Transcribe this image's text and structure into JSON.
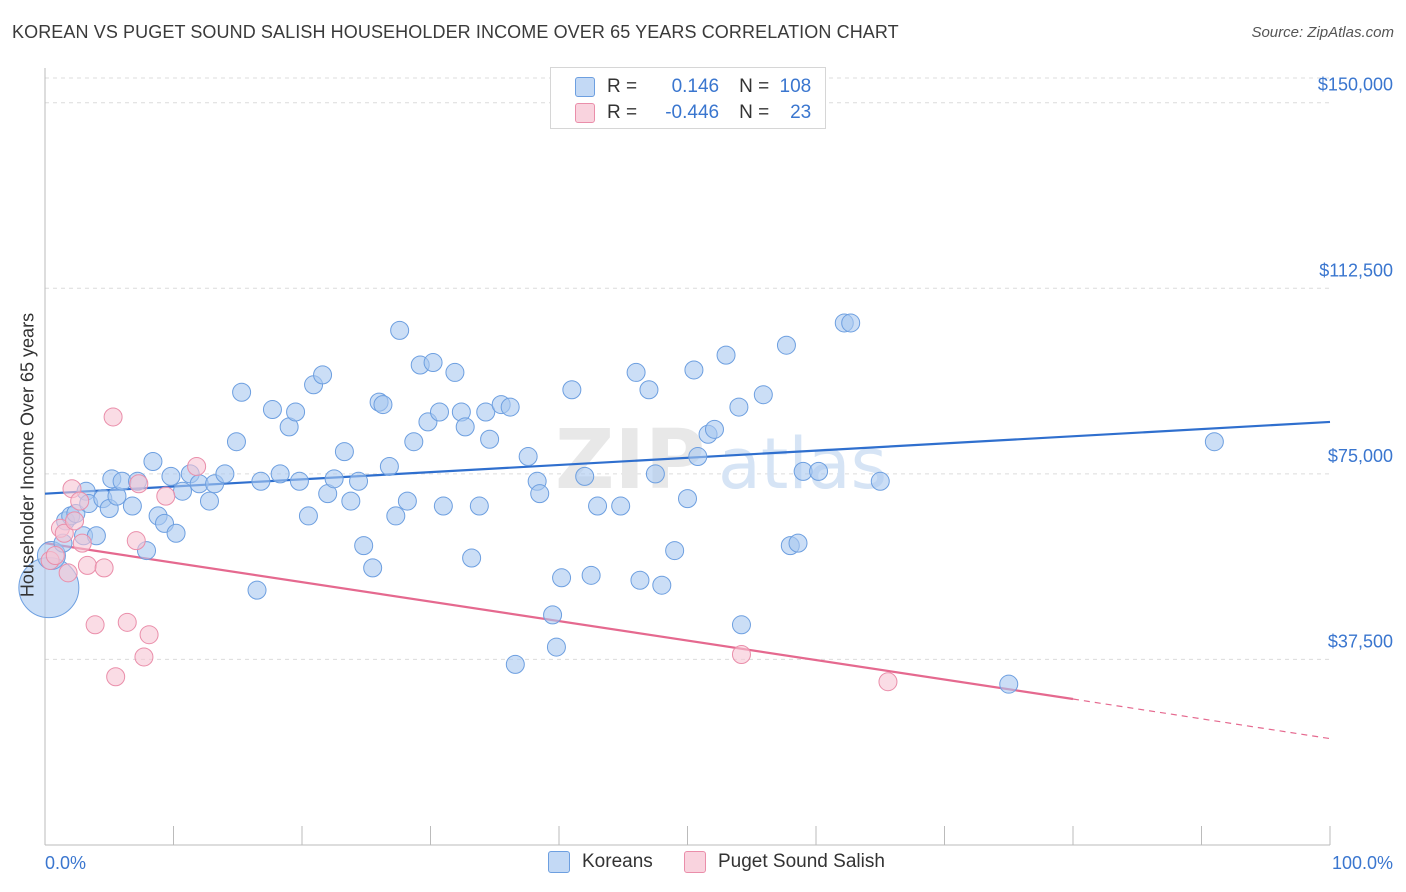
{
  "title": "KOREAN VS PUGET SOUND SALISH HOUSEHOLDER INCOME OVER 65 YEARS CORRELATION CHART",
  "source": "Source: ZipAtlas.com",
  "watermark": {
    "zip": "ZIP",
    "atlas": "atlas"
  },
  "legend": {
    "rows": [
      {
        "r_label": "R =",
        "r_value": "0.146",
        "n_label": "N =",
        "n_value": "108"
      },
      {
        "r_label": "R =",
        "r_value": "-0.446",
        "n_label": "N =",
        "n_value": "23"
      }
    ]
  },
  "colors": {
    "korean_fill": "#a9c8f0",
    "korean_stroke": "#6d9fe0",
    "korean_line": "#2f6fce",
    "salish_fill": "#f7c4d3",
    "salish_stroke": "#ea8eaa",
    "salish_line": "#e5698f",
    "axis_label": "#3a76cf",
    "grid": "#dcdcdc"
  },
  "chart_data": {
    "type": "scatter",
    "xlabel": "",
    "ylabel": "Householder Income Over 65 years",
    "xlim": [
      0,
      100
    ],
    "ylim": [
      0,
      155000
    ],
    "x_tick_labels": [
      "0.0%",
      "100.0%"
    ],
    "y_ticks": [
      37500,
      75000,
      112500,
      150000
    ],
    "y_tick_labels": [
      "$37,500",
      "$75,000",
      "$112,500",
      "$150,000"
    ],
    "grid": "horizontal dashed",
    "series": [
      {
        "name": "Koreans",
        "color": "#a9c8f0",
        "trend": {
          "x": [
            0,
            100
          ],
          "y": [
            71000,
            85500
          ]
        },
        "points": [
          [
            0.3,
            52000,
            30
          ],
          [
            0.5,
            58500,
            14
          ],
          [
            1.4,
            61000,
            9
          ],
          [
            1.6,
            65500,
            9
          ],
          [
            2.0,
            66500,
            9
          ],
          [
            2.4,
            67000,
            9
          ],
          [
            3.0,
            62500,
            9
          ],
          [
            3.2,
            71500,
            9
          ],
          [
            3.4,
            69000,
            9
          ],
          [
            4.0,
            62500,
            9
          ],
          [
            4.5,
            70000,
            9
          ],
          [
            5.0,
            68000,
            9
          ],
          [
            5.2,
            74000,
            9
          ],
          [
            5.6,
            70500,
            9
          ],
          [
            6.0,
            73500,
            9
          ],
          [
            6.8,
            68500,
            9
          ],
          [
            7.2,
            73500,
            9
          ],
          [
            7.9,
            59500,
            9
          ],
          [
            8.4,
            77500,
            9
          ],
          [
            8.8,
            66500,
            9
          ],
          [
            9.3,
            65000,
            9
          ],
          [
            9.8,
            74500,
            9
          ],
          [
            10.2,
            63000,
            9
          ],
          [
            10.7,
            71500,
            9
          ],
          [
            11.3,
            75000,
            9
          ],
          [
            12.0,
            73000,
            9
          ],
          [
            12.8,
            69500,
            9
          ],
          [
            13.2,
            73000,
            9
          ],
          [
            14.0,
            75000,
            9
          ],
          [
            14.9,
            81500,
            9
          ],
          [
            15.3,
            91500,
            9
          ],
          [
            16.5,
            51500,
            9
          ],
          [
            16.8,
            73500,
            9
          ],
          [
            17.7,
            88000,
            9
          ],
          [
            18.3,
            75000,
            9
          ],
          [
            19.0,
            84500,
            9
          ],
          [
            19.5,
            87500,
            9
          ],
          [
            19.8,
            73500,
            9
          ],
          [
            20.5,
            66500,
            9
          ],
          [
            20.9,
            93000,
            9
          ],
          [
            21.6,
            95000,
            9
          ],
          [
            22.0,
            71000,
            9
          ],
          [
            22.5,
            74000,
            9
          ],
          [
            23.3,
            79500,
            9
          ],
          [
            23.8,
            69500,
            9
          ],
          [
            24.4,
            73500,
            9
          ],
          [
            24.8,
            60500,
            9
          ],
          [
            25.5,
            56000,
            9
          ],
          [
            26.0,
            89500,
            9
          ],
          [
            26.3,
            89000,
            9
          ],
          [
            26.8,
            76500,
            9
          ],
          [
            27.3,
            66500,
            9
          ],
          [
            27.6,
            104000,
            9
          ],
          [
            28.2,
            69500,
            9
          ],
          [
            28.7,
            81500,
            9
          ],
          [
            29.2,
            97000,
            9
          ],
          [
            29.8,
            85500,
            9
          ],
          [
            30.2,
            97500,
            9
          ],
          [
            30.7,
            87500,
            9
          ],
          [
            31.0,
            68500,
            9
          ],
          [
            31.9,
            95500,
            9
          ],
          [
            32.4,
            87500,
            9
          ],
          [
            32.7,
            84500,
            9
          ],
          [
            33.2,
            58000,
            9
          ],
          [
            33.8,
            68500,
            9
          ],
          [
            34.3,
            87500,
            9
          ],
          [
            34.6,
            82000,
            9
          ],
          [
            35.5,
            89000,
            9
          ],
          [
            36.2,
            88500,
            9
          ],
          [
            36.6,
            36500,
            9
          ],
          [
            37.6,
            78500,
            9
          ],
          [
            38.3,
            73500,
            9
          ],
          [
            38.5,
            71000,
            9
          ],
          [
            39.5,
            46500,
            9
          ],
          [
            39.8,
            40000,
            9
          ],
          [
            40.2,
            54000,
            9
          ],
          [
            41.0,
            92000,
            9
          ],
          [
            42.0,
            74500,
            9
          ],
          [
            42.5,
            54500,
            9
          ],
          [
            43.0,
            68500,
            9
          ],
          [
            44.8,
            68500,
            9
          ],
          [
            46.0,
            95500,
            9
          ],
          [
            46.3,
            53500,
            9
          ],
          [
            47.0,
            92000,
            9
          ],
          [
            47.5,
            75000,
            9
          ],
          [
            48.0,
            52500,
            9
          ],
          [
            49.0,
            59500,
            9
          ],
          [
            50.0,
            70000,
            9
          ],
          [
            50.5,
            96000,
            9
          ],
          [
            50.8,
            78500,
            9
          ],
          [
            51.6,
            83000,
            9
          ],
          [
            52.1,
            84000,
            9
          ],
          [
            53.0,
            99000,
            9
          ],
          [
            54.0,
            88500,
            9
          ],
          [
            54.2,
            44500,
            9
          ],
          [
            55.9,
            91000,
            9
          ],
          [
            57.7,
            101000,
            9
          ],
          [
            58.0,
            60500,
            9
          ],
          [
            58.6,
            61000,
            9
          ],
          [
            59.0,
            75500,
            9
          ],
          [
            60.2,
            75500,
            9
          ],
          [
            62.2,
            105500,
            9
          ],
          [
            62.7,
            105500,
            9
          ],
          [
            65.0,
            73500,
            9
          ],
          [
            75.0,
            32500,
            9
          ],
          [
            91.0,
            81500,
            9
          ]
        ]
      },
      {
        "name": "Puget Sound Salish",
        "color": "#f7c4d3",
        "trend": {
          "x": [
            0,
            80
          ],
          "y": [
            61000,
            29500
          ],
          "dashed_to": {
            "x": 100,
            "y": 21500
          }
        },
        "points": [
          [
            0.4,
            57500,
            9
          ],
          [
            0.8,
            58500,
            9
          ],
          [
            1.2,
            64000,
            9
          ],
          [
            1.5,
            63000,
            9
          ],
          [
            1.8,
            55000,
            9
          ],
          [
            2.1,
            72000,
            9
          ],
          [
            2.3,
            65500,
            9
          ],
          [
            2.7,
            69500,
            9
          ],
          [
            2.9,
            61000,
            9
          ],
          [
            3.3,
            56500,
            9
          ],
          [
            3.9,
            44500,
            9
          ],
          [
            4.6,
            56000,
            9
          ],
          [
            5.3,
            86500,
            9
          ],
          [
            5.5,
            34000,
            9
          ],
          [
            6.4,
            45000,
            9
          ],
          [
            7.1,
            61500,
            9
          ],
          [
            7.3,
            73000,
            9
          ],
          [
            7.7,
            38000,
            9
          ],
          [
            8.1,
            42500,
            9
          ],
          [
            9.4,
            70500,
            9
          ],
          [
            11.8,
            76500,
            9
          ],
          [
            54.2,
            38500,
            9
          ],
          [
            65.6,
            33000,
            9
          ]
        ]
      }
    ]
  }
}
